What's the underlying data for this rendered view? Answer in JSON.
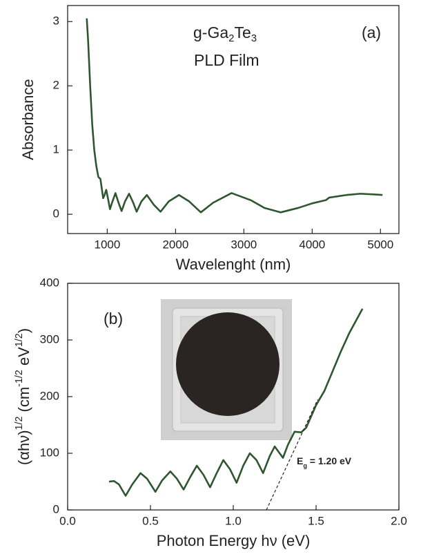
{
  "chart_data": [
    {
      "type": "line",
      "xlabel": "Wavelenght (nm)",
      "ylabel": "Absorbance",
      "panel_label": "(a)",
      "sample_label": [
        "g-Ga",
        "2",
        "Te",
        "3"
      ],
      "sample_label_script": "sub",
      "film_label": "PLD Film",
      "xlim": [
        420,
        5270
      ],
      "ylim": [
        -0.3,
        3.25
      ],
      "xticks": [
        1000,
        2000,
        3000,
        4000,
        5000
      ],
      "yticks": [
        0,
        1,
        2,
        3
      ],
      "series": [
        {
          "color": "#2f5530",
          "x": [
            700,
            720,
            750,
            780,
            810,
            840,
            870,
            900,
            920,
            940,
            960,
            985,
            1010,
            1040,
            1070,
            1120,
            1165,
            1210,
            1260,
            1320,
            1380,
            1430,
            1500,
            1580,
            1680,
            1780,
            1900,
            2050,
            2200,
            2370,
            2550,
            2820,
            3100,
            3300,
            3540,
            3800,
            4000,
            4200,
            4250,
            4500,
            4700,
            4900,
            5030
          ],
          "values": [
            3.05,
            2.7,
            2.0,
            1.4,
            1.0,
            0.75,
            0.58,
            0.55,
            0.4,
            0.25,
            0.3,
            0.38,
            0.25,
            0.08,
            0.18,
            0.33,
            0.18,
            0.05,
            0.2,
            0.32,
            0.18,
            0.04,
            0.2,
            0.3,
            0.15,
            0.04,
            0.2,
            0.3,
            0.2,
            0.03,
            0.18,
            0.33,
            0.22,
            0.1,
            0.03,
            0.1,
            0.17,
            0.22,
            0.26,
            0.3,
            0.32,
            0.31,
            0.3
          ]
        }
      ]
    },
    {
      "type": "line",
      "xlabel": "Photon Energy hν (eV)",
      "ylabel_parts": [
        "(αhν)",
        "1/2",
        " (cm",
        "-1/2",
        " eV",
        "1/2",
        ")"
      ],
      "ylabel_script": "sup",
      "panel_label": "(b)",
      "eg_label": [
        "E",
        "g",
        " = 1.20 eV"
      ],
      "eg_label_script": "sub",
      "xlim": [
        0,
        2
      ],
      "ylim": [
        0,
        400
      ],
      "xticks": [
        {
          "value": 0,
          "label": "0.0"
        },
        {
          "value": 0.5,
          "label": "0.5"
        },
        {
          "value": 1,
          "label": "1.0"
        },
        {
          "value": 1.5,
          "label": "1.5"
        },
        {
          "value": 2,
          "label": "2.0"
        }
      ],
      "yticks": [
        0,
        100,
        200,
        300,
        400
      ],
      "series": [
        {
          "color": "#2f5530",
          "x": [
            0.25,
            0.28,
            0.31,
            0.35,
            0.39,
            0.44,
            0.48,
            0.53,
            0.57,
            0.62,
            0.66,
            0.7,
            0.74,
            0.78,
            0.82,
            0.86,
            0.9,
            0.94,
            0.98,
            1.02,
            1.06,
            1.1,
            1.14,
            1.18,
            1.22,
            1.25,
            1.28,
            1.3,
            1.33,
            1.37,
            1.41,
            1.44,
            1.47,
            1.5,
            1.55,
            1.6,
            1.65,
            1.7,
            1.78
          ],
          "values": [
            50,
            51,
            45,
            25,
            45,
            65,
            55,
            32,
            52,
            68,
            55,
            36,
            58,
            78,
            62,
            40,
            65,
            88,
            72,
            48,
            78,
            100,
            88,
            65,
            95,
            112,
            100,
            92,
            115,
            138,
            137,
            145,
            165,
            185,
            210,
            245,
            280,
            312,
            355
          ]
        },
        {
          "color": "#222",
          "dashed": true,
          "x": [
            1.2,
            1.51
          ],
          "values": [
            0,
            195
          ]
        }
      ]
    }
  ]
}
